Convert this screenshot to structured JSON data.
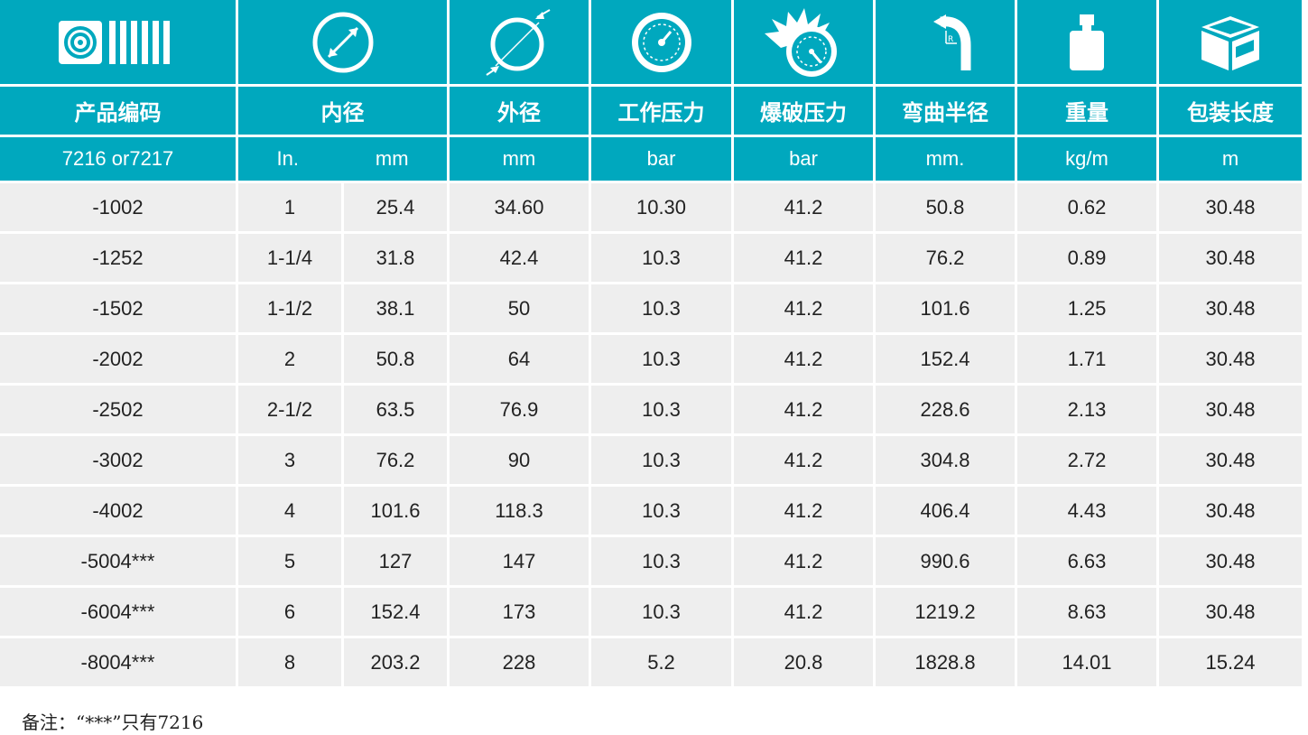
{
  "header": {
    "titles": [
      "产品编码",
      "内径",
      "外径",
      "工作压力",
      "爆破压力",
      "弯曲半径",
      "重量",
      "包装长度"
    ],
    "units": {
      "code": "7216 or7217",
      "id_in": "In.",
      "id_mm": "mm",
      "od": "mm",
      "work": "bar",
      "burst": "bar",
      "bend": "mm.",
      "weight": "kg/m",
      "length": "m"
    },
    "icons": [
      "hose-logo-icon",
      "inner-diameter-icon",
      "outer-diameter-icon",
      "gauge-icon",
      "burst-gauge-icon",
      "bend-radius-icon",
      "weight-icon",
      "package-box-icon"
    ]
  },
  "colors": {
    "header_bg": "#00a8be",
    "row_bg": "#eeeeee"
  },
  "rows": [
    [
      "-1002",
      "1",
      "25.4",
      "34.60",
      "10.30",
      "41.2",
      "50.8",
      "0.62",
      "30.48"
    ],
    [
      "-1252",
      "1-1/4",
      "31.8",
      "42.4",
      "10.3",
      "41.2",
      "76.2",
      "0.89",
      "30.48"
    ],
    [
      "-1502",
      "1-1/2",
      "38.1",
      "50",
      "10.3",
      "41.2",
      "101.6",
      "1.25",
      "30.48"
    ],
    [
      "-2002",
      "2",
      "50.8",
      "64",
      "10.3",
      "41.2",
      "152.4",
      "1.71",
      "30.48"
    ],
    [
      "-2502",
      "2-1/2",
      "63.5",
      "76.9",
      "10.3",
      "41.2",
      "228.6",
      "2.13",
      "30.48"
    ],
    [
      "-3002",
      "3",
      "76.2",
      "90",
      "10.3",
      "41.2",
      "304.8",
      "2.72",
      "30.48"
    ],
    [
      "-4002",
      "4",
      "101.6",
      "118.3",
      "10.3",
      "41.2",
      "406.4",
      "4.43",
      "30.48"
    ],
    [
      "-5004***",
      "5",
      "127",
      "147",
      "10.3",
      "41.2",
      "990.6",
      "6.63",
      "30.48"
    ],
    [
      "-6004***",
      "6",
      "152.4",
      "173",
      "10.3",
      "41.2",
      "1219.2",
      "8.63",
      "30.48"
    ],
    [
      "-8004***",
      "8",
      "203.2",
      "228",
      "5.2",
      "20.8",
      "1828.8",
      "14.01",
      "15.24"
    ]
  ],
  "note": "备注：“***”只有7216"
}
